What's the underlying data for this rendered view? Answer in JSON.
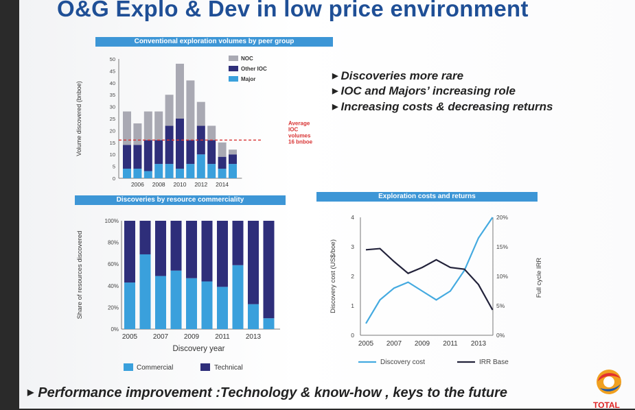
{
  "slide": {
    "title": "O&G Explo & Dev in low price environment",
    "bullets": [
      "Discoveries more  rare",
      "IOC and Majors’ increasing role",
      "Increasing costs  & decreasing returns"
    ],
    "footer": "Performance improvement :Technology & know-how , keys to the future",
    "logo_text": "TOTAL"
  },
  "colors": {
    "noc": "#a9a9b3",
    "other_ioc": "#2e2e7a",
    "major": "#3aa0dc",
    "commercial": "#3aa0dc",
    "technical": "#2e2e7a",
    "discovery_cost": "#44aae0",
    "irr_base": "#22223a",
    "average_line": "#d83333",
    "title_bar": "#3d96d6"
  },
  "chart_data": [
    {
      "type": "bar",
      "stacked": true,
      "title": "Conventional exploration volumes by peer group",
      "ylabel": "Volume discovered (bnboe)",
      "ylim": [
        0,
        50
      ],
      "yticks": [
        "0",
        "5",
        "10",
        "15",
        "20",
        "25",
        "30",
        "35",
        "40",
        "45",
        "50"
      ],
      "xtick_labels": [
        "2006",
        "2008",
        "2010",
        "2012",
        "2014"
      ],
      "categories": [
        "2005",
        "2006",
        "2007",
        "2008",
        "2009",
        "2010",
        "2011",
        "2012",
        "2013",
        "2014",
        "2015"
      ],
      "series": [
        {
          "name": "Major",
          "values": [
            4,
            4,
            3,
            6,
            6,
            4,
            6,
            10,
            6,
            4,
            6
          ]
        },
        {
          "name": "Other IOC",
          "values": [
            10,
            10,
            13,
            10,
            16,
            21,
            10,
            12,
            10,
            5,
            4
          ]
        },
        {
          "name": "NOC",
          "values": [
            14,
            9,
            12,
            12,
            13,
            23,
            25,
            10,
            6,
            6,
            2
          ]
        }
      ],
      "reference_line": {
        "value": 16,
        "label": [
          "Average",
          "IOC",
          "volumes",
          "16 bnboe"
        ]
      },
      "legend_position": "top-right"
    },
    {
      "type": "bar",
      "stacked": true,
      "title": "Discoveries by resource commerciality",
      "xlabel": "Discovery year",
      "ylabel": "Share of resources discovered",
      "ylim": [
        0,
        100
      ],
      "yticks": [
        "0%",
        "20%",
        "40%",
        "60%",
        "80%",
        "100%"
      ],
      "xtick_labels": [
        "2005",
        "2007",
        "2009",
        "2011",
        "2013"
      ],
      "categories": [
        "2005",
        "2006",
        "2007",
        "2008",
        "2009",
        "2010",
        "2011",
        "2012",
        "2013",
        "2014"
      ],
      "series": [
        {
          "name": "Commercial",
          "values": [
            43,
            69,
            49,
            54,
            47,
            44,
            39,
            59,
            23,
            10
          ]
        },
        {
          "name": "Technical",
          "values": [
            57,
            31,
            51,
            46,
            53,
            56,
            61,
            41,
            77,
            90
          ]
        }
      ],
      "legend_position": "bottom"
    },
    {
      "type": "line",
      "title": "Exploration costs and returns",
      "ylabel": "Discovery cost (US$/boe)",
      "y2label": "Full cycle IRR",
      "ylim": [
        0,
        4
      ],
      "y2lim": [
        0,
        20
      ],
      "yticks": [
        "0",
        "1",
        "2",
        "3",
        "4"
      ],
      "y2ticks": [
        "0%",
        "5%",
        "10%",
        "15%",
        "20%"
      ],
      "xtick_labels": [
        "2005",
        "2007",
        "2009",
        "2011",
        "2013"
      ],
      "x": [
        2005,
        2006,
        2007,
        2008,
        2009,
        2010,
        2011,
        2012,
        2013,
        2014
      ],
      "series": [
        {
          "name": "Discovery cost",
          "axis": "left",
          "values": [
            0.4,
            1.2,
            1.6,
            1.8,
            1.5,
            1.2,
            1.5,
            2.2,
            3.3,
            4.0
          ]
        },
        {
          "name": "IRR Base",
          "axis": "right",
          "values": [
            14.5,
            14.7,
            12.5,
            10.5,
            11.5,
            12.8,
            11.5,
            11.2,
            8.6,
            4.3
          ]
        }
      ],
      "legend_position": "bottom"
    }
  ]
}
